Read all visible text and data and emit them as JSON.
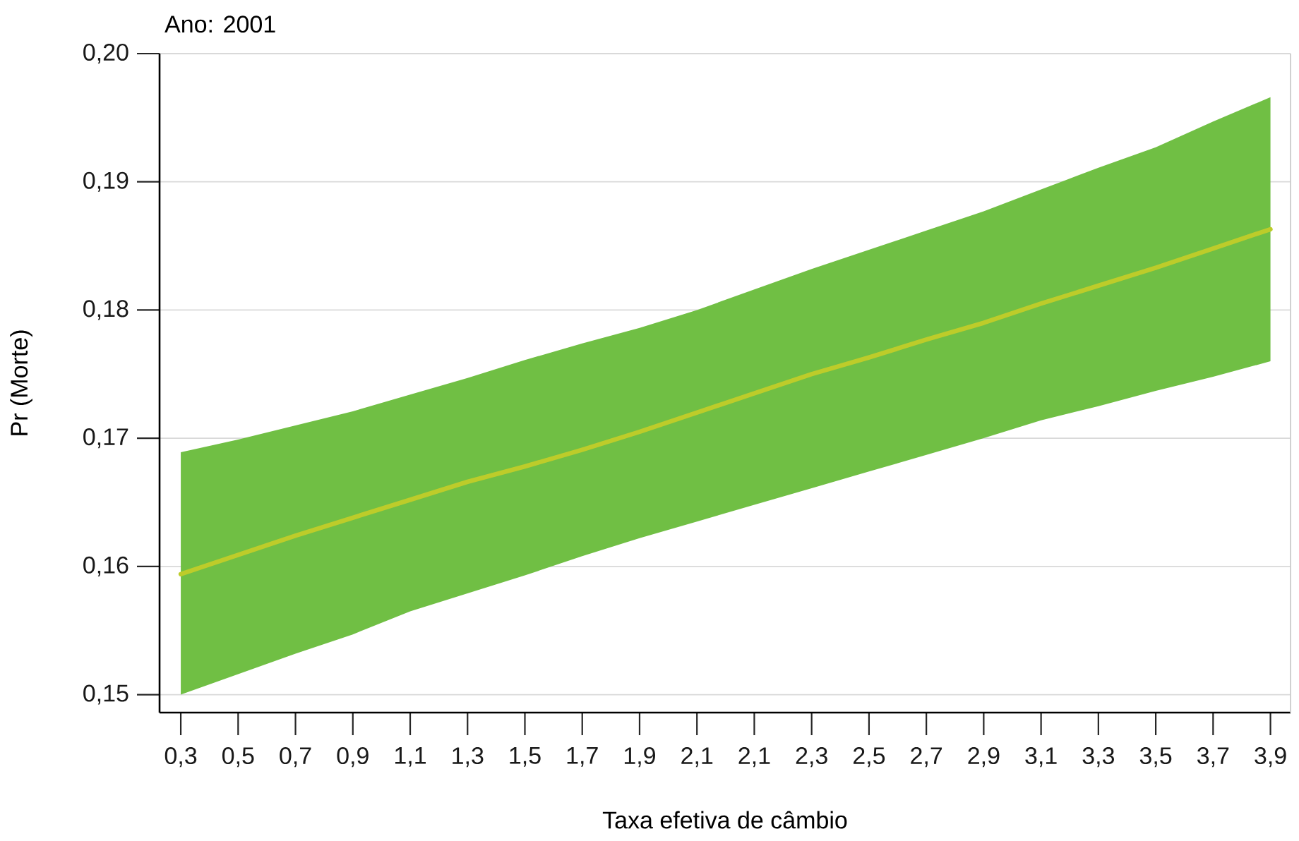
{
  "chart_data": {
    "type": "line",
    "title": "Ano: 2001",
    "xlabel": "Taxa efetiva de câmbio",
    "ylabel": "Pr (Morte)",
    "categories": [
      "0,3",
      "0,5",
      "0,7",
      "0,9",
      "1,1",
      "1,3",
      "1,5",
      "1,7",
      "1,9",
      "2,1",
      "2,1",
      "2,3",
      "2,5",
      "2,7",
      "2,9",
      "3,1",
      "3,3",
      "3,5",
      "3,7",
      "3,9"
    ],
    "series": [
      {
        "color": "#bdcc2a",
        "values": [
          0.1594,
          0.1609,
          0.1624,
          0.1638,
          0.1652,
          0.1666,
          0.1678,
          0.1691,
          0.1705,
          0.172,
          0.1735,
          0.175,
          0.1763,
          0.1777,
          0.179,
          0.1805,
          0.1819,
          0.1833,
          0.1848,
          0.1863
        ],
        "lower": [
          0.15,
          0.1516,
          0.1532,
          0.1547,
          0.1565,
          0.1579,
          0.1593,
          0.1608,
          0.1622,
          0.1635,
          0.1648,
          0.1661,
          0.1674,
          0.1687,
          0.17,
          0.1714,
          0.1725,
          0.1737,
          0.1748,
          0.176
        ],
        "upper": [
          0.1689,
          0.1699,
          0.171,
          0.1721,
          0.1734,
          0.1747,
          0.1761,
          0.1774,
          0.1786,
          0.18,
          0.1816,
          0.1832,
          0.1847,
          0.1862,
          0.1877,
          0.1894,
          0.1911,
          0.1927,
          0.1947,
          0.1966
        ]
      }
    ],
    "ylim": [
      0.1486,
      0.2
    ],
    "yticks": [
      {
        "value": 0.15,
        "label": "0,15"
      },
      {
        "value": 0.16,
        "label": "0,16"
      },
      {
        "value": 0.17,
        "label": "0,17"
      },
      {
        "value": 0.18,
        "label": "0,18"
      },
      {
        "value": 0.19,
        "label": "0,19"
      },
      {
        "value": 0.2,
        "label": "0,20"
      }
    ],
    "grid": "y"
  }
}
